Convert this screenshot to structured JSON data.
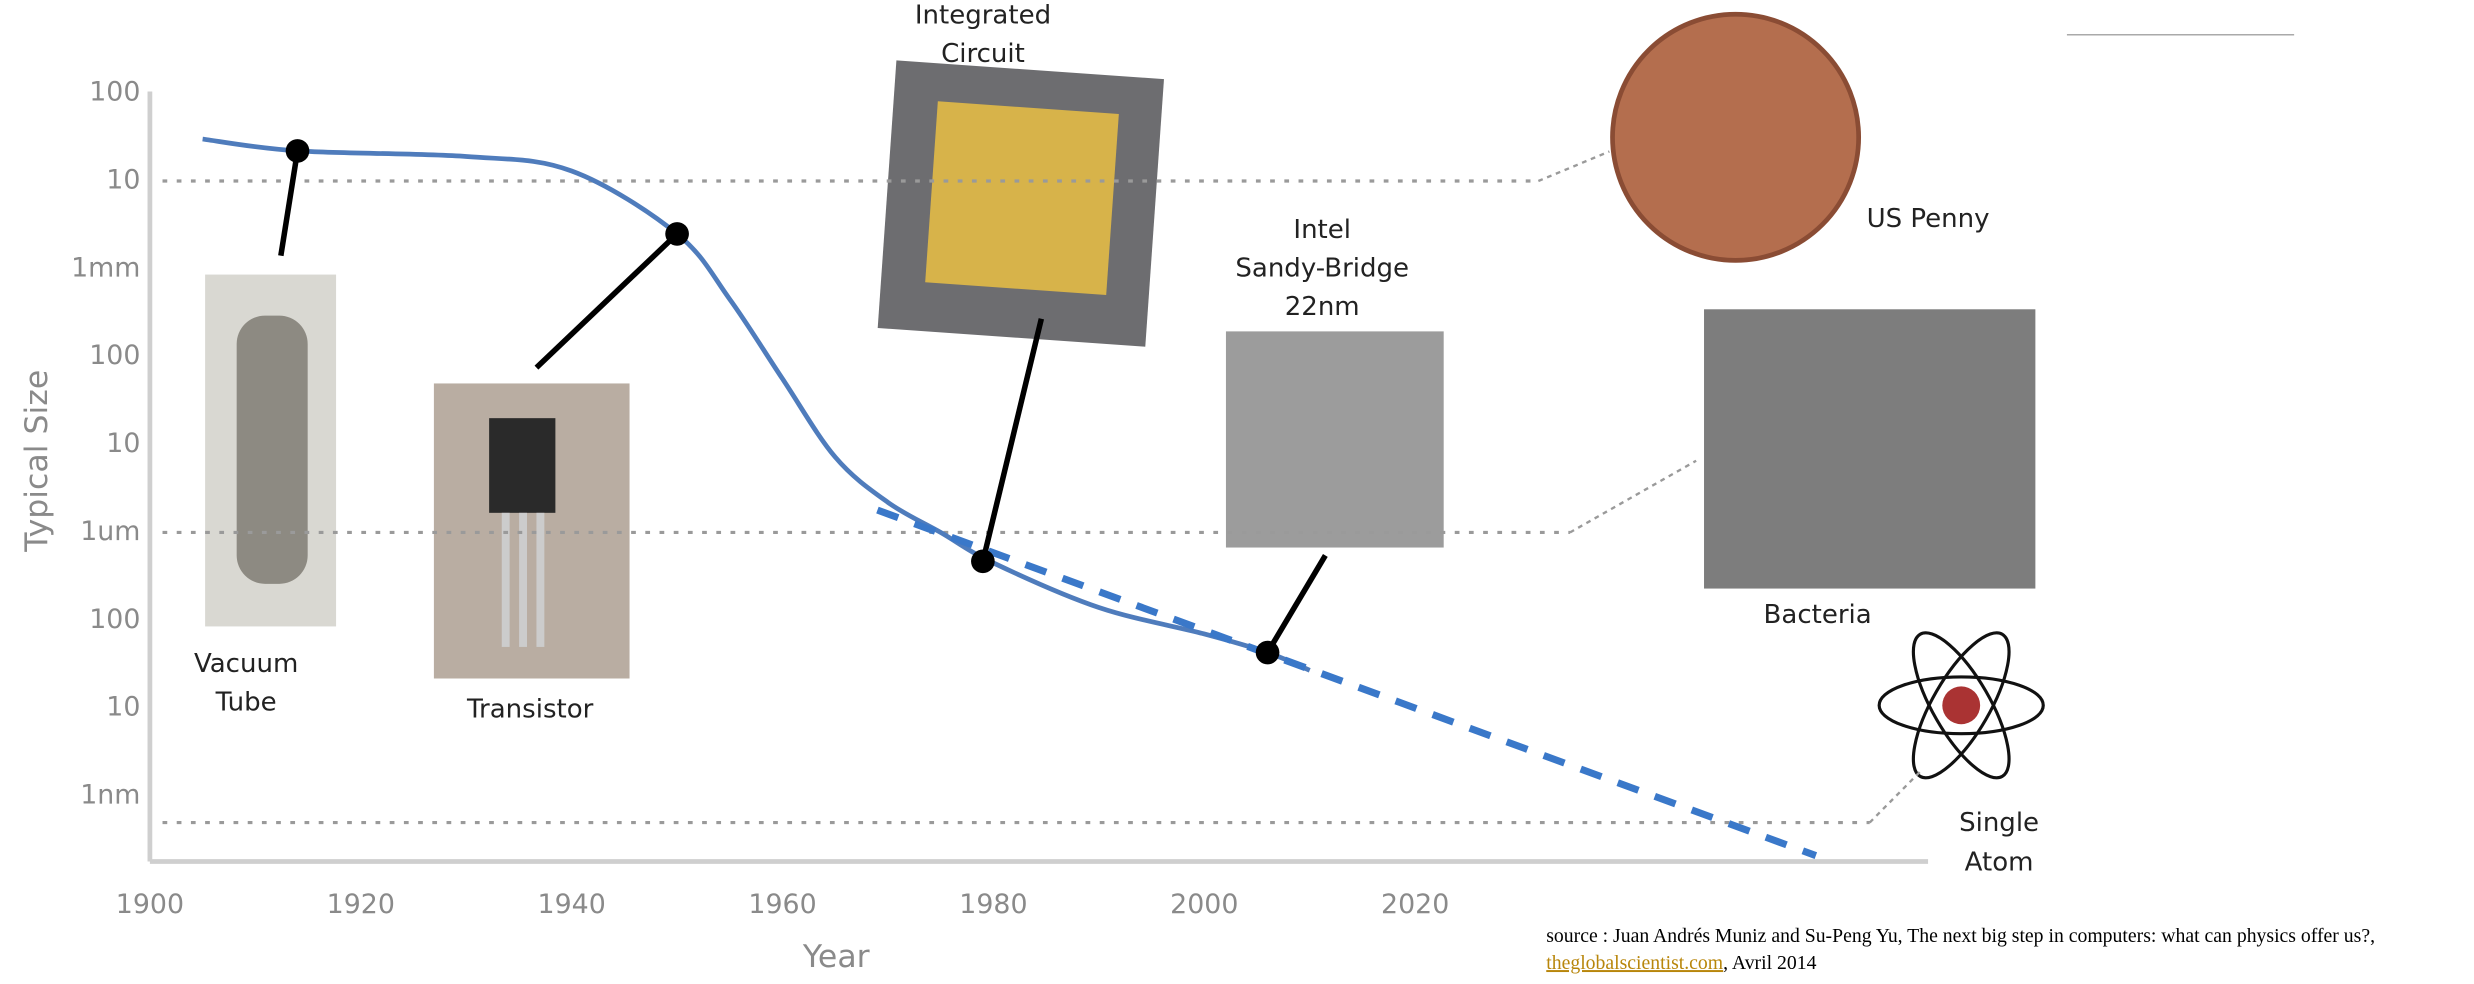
{
  "chart_data": {
    "type": "line",
    "x_label": "Year",
    "y_label": "Typical Size",
    "log_y": true,
    "xlim": [
      1900,
      2068
    ],
    "ylim": [
      0.18,
      100000000
    ],
    "xticks": [
      1900,
      1920,
      1940,
      1960,
      1980,
      2000,
      2020
    ],
    "yticks": [
      {
        "value": 100000000,
        "label": "100"
      },
      {
        "value": 10000000,
        "label": "10"
      },
      {
        "value": 1000000,
        "label": "1mm"
      },
      {
        "value": 100000,
        "label": "100"
      },
      {
        "value": 10000,
        "label": "10"
      },
      {
        "value": 1000,
        "label": "1um"
      },
      100,
      10,
      {
        "value": 1,
        "label": "1nm"
      }
    ],
    "series": [
      {
        "color": "#4f7cbc",
        "style": "solid",
        "x": [
          1905,
          1914,
          1930,
          1940,
          1950,
          1955,
          1960,
          1965,
          1970,
          1975,
          1980,
          1990,
          2000,
          2006,
          2010
        ],
        "values": [
          30000000,
          22000000,
          19000000,
          13000000,
          2500000,
          450000,
          56000,
          7200,
          2200,
          1000,
          450,
          140,
          70,
          43,
          27
        ]
      },
      {
        "color": "#3a78c9",
        "style": "dashed",
        "x": [
          1969,
          2058
        ],
        "values": [
          1800,
          0.21
        ]
      }
    ],
    "points": {
      "color": "#000000",
      "x": [
        1914,
        1950,
        1979,
        2006
      ],
      "values": [
        22000000,
        2500000,
        470,
        43
      ],
      "labels": [
        [
          "Vacuum",
          "Tube"
        ],
        [
          "Transistor"
        ],
        [
          "Integrated",
          "Circuit"
        ],
        [
          "Intel",
          "Sandy-Bridge",
          "22nm"
        ]
      ]
    },
    "reference_lines": {
      "color": "#9a9a9a",
      "values": [
        10000000,
        1000,
        0.5
      ],
      "labels": [
        [
          "US Penny"
        ],
        [
          "Bacteria"
        ],
        [
          "Single",
          "Atom"
        ]
      ]
    }
  },
  "source": {
    "text": "source : Juan Andrés Muniz and Su-Peng Yu, The next big step in computers: what can physics offer us?,",
    "link": "theglobalscientist.com",
    "date": ", Avril 2014"
  }
}
